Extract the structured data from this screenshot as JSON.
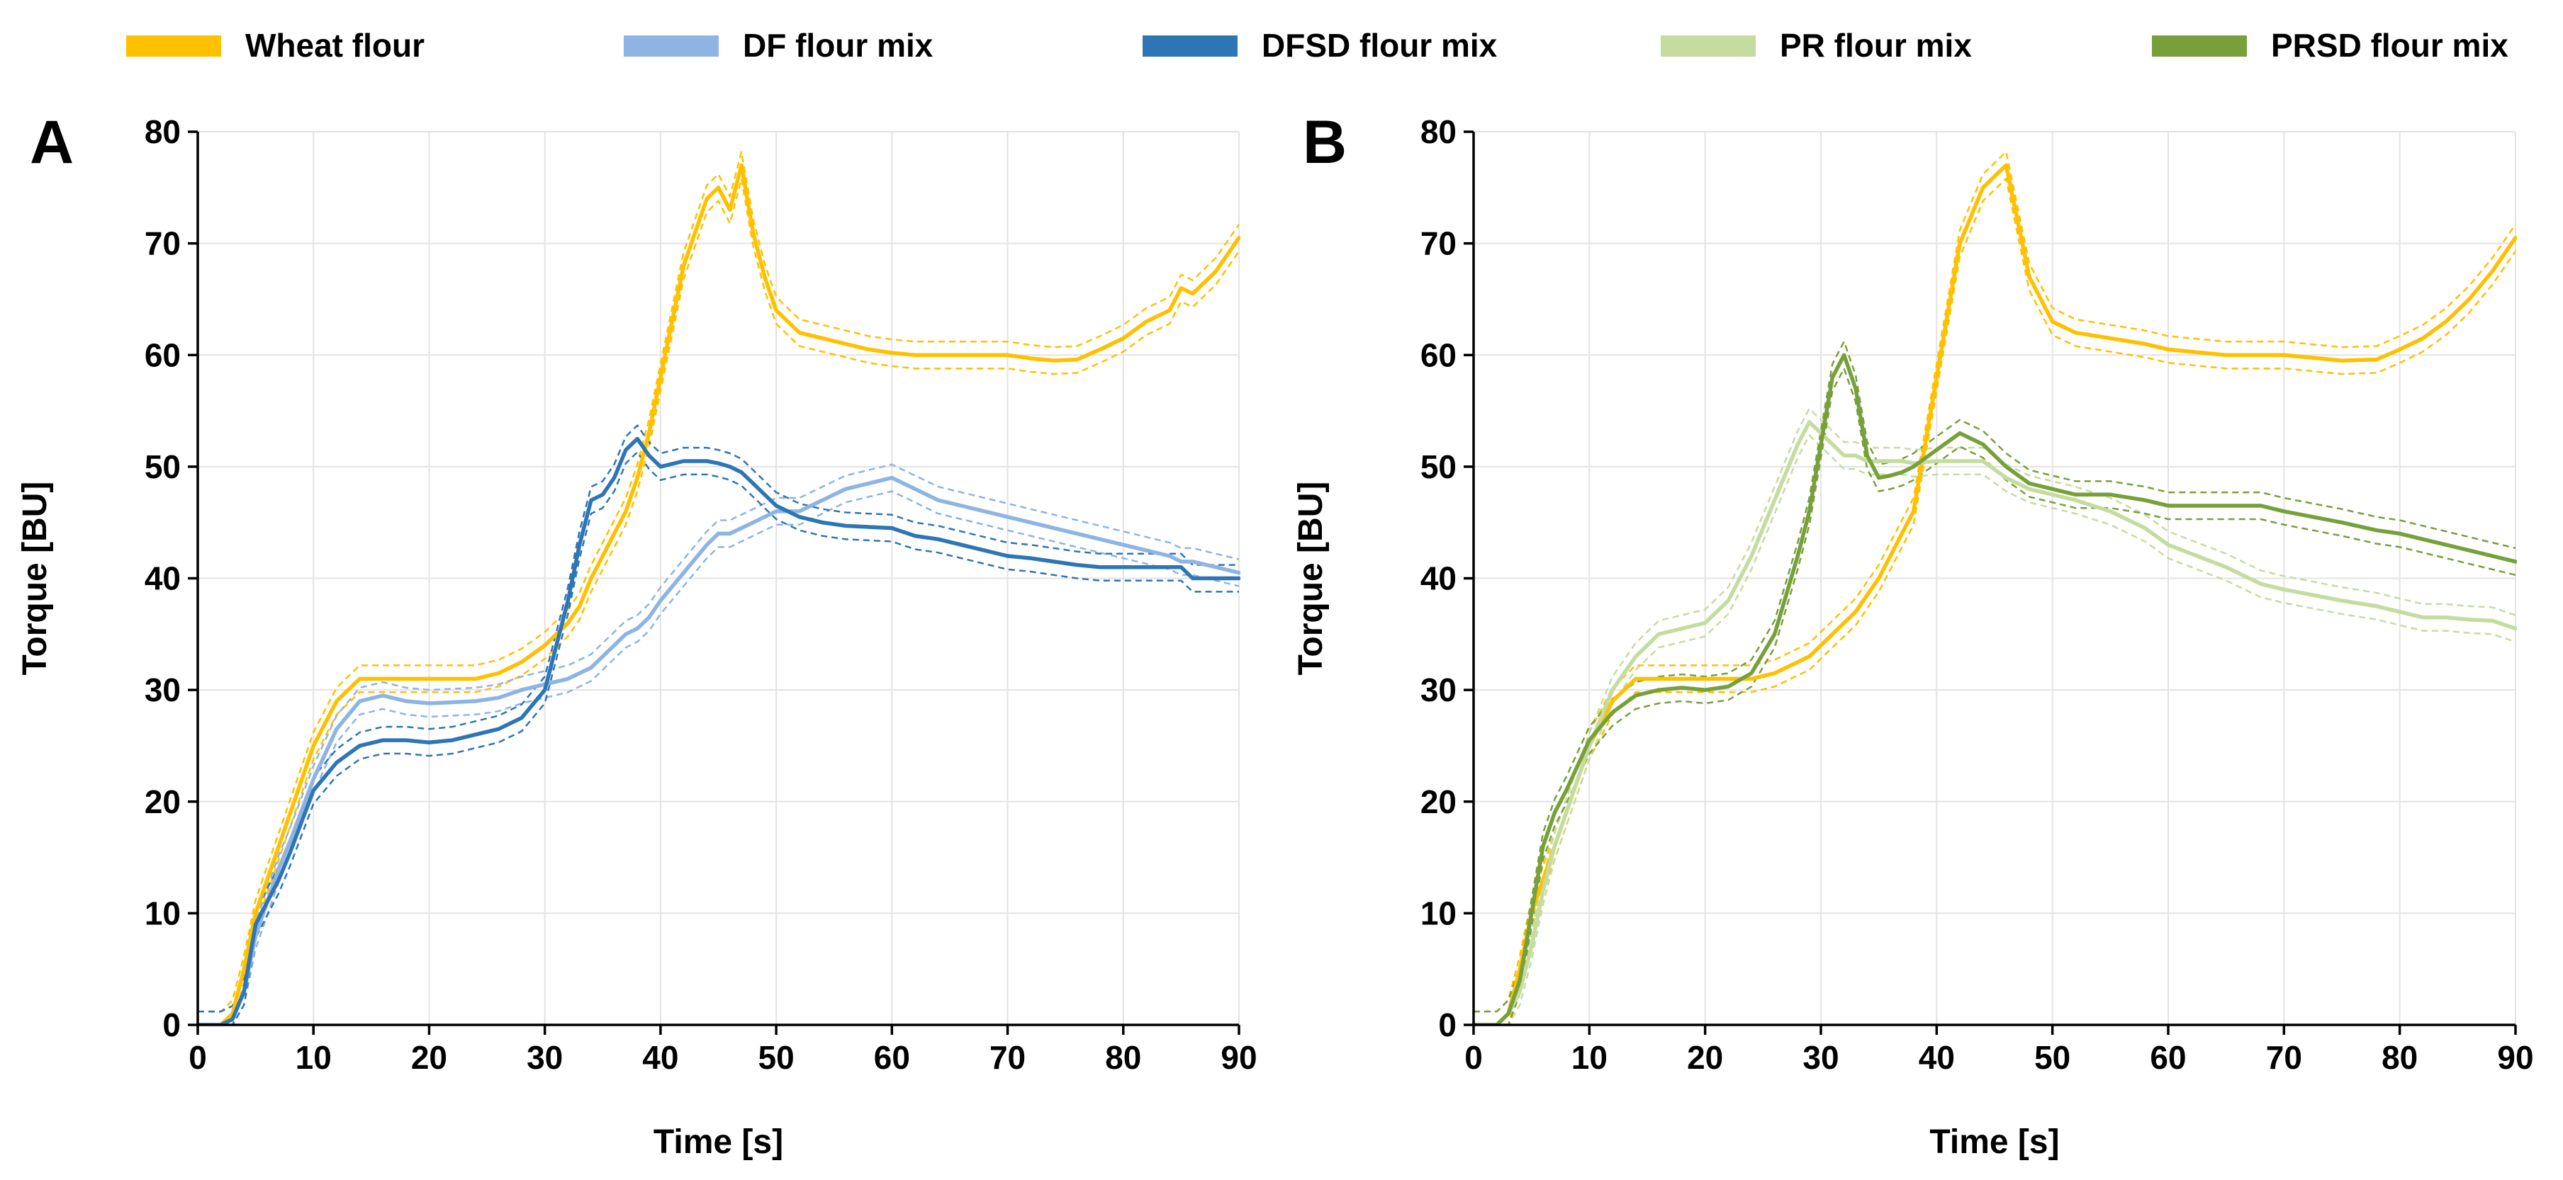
{
  "legend": {
    "position": "top",
    "items": [
      {
        "label": "Wheat flour",
        "color": "#FFC000"
      },
      {
        "label": "DF flour mix",
        "color": "#8EB4E3"
      },
      {
        "label": "DFSD flour mix",
        "color": "#2E75B6"
      },
      {
        "label": "PR flour mix",
        "color": "#C5DCA0"
      },
      {
        "label": "PRSD flour mix",
        "color": "#77A03A"
      }
    ]
  },
  "chart_data": [
    {
      "panel_label": "A",
      "type": "line",
      "xlabel": "Time [s]",
      "ylabel": "Torque [BU]",
      "xlim": [
        0,
        90
      ],
      "ylim": [
        0,
        80
      ],
      "xticks": [
        "0",
        "10",
        "20",
        "30",
        "40",
        "50",
        "60",
        "70",
        "80",
        "90"
      ],
      "yticks": [
        "0",
        "10",
        "20",
        "30",
        "40",
        "50",
        "60",
        "70",
        "80"
      ],
      "grid": true,
      "x": [
        0,
        2,
        3,
        4,
        5,
        6,
        7,
        8,
        10,
        12,
        14,
        16,
        18,
        20,
        22,
        24,
        26,
        28,
        30,
        32,
        33,
        34,
        35,
        36,
        37,
        38,
        39,
        40,
        42,
        44,
        45,
        46,
        47,
        48,
        49,
        50,
        52,
        54,
        56,
        58,
        60,
        62,
        64,
        66,
        68,
        70,
        72,
        74,
        76,
        78,
        80,
        82,
        84,
        85,
        86,
        88,
        90
      ],
      "series": [
        {
          "name": "Wheat flour",
          "color": "#FFC000",
          "values": [
            0,
            0,
            1,
            5,
            10,
            13,
            16,
            19,
            25,
            29,
            31,
            31,
            31,
            31,
            31,
            31,
            31.5,
            32.5,
            34,
            36,
            37.5,
            40,
            42,
            44,
            46,
            49,
            53,
            58,
            68,
            74,
            75,
            73,
            77,
            71,
            67,
            64,
            62,
            61.5,
            61,
            60.5,
            60.2,
            60,
            60,
            60,
            60,
            60,
            59.7,
            59.5,
            59.6,
            60.5,
            61.5,
            63,
            64,
            66,
            65.5,
            67.5,
            70.5
          ]
        },
        {
          "name": "DF flour mix",
          "color": "#8EB4E3",
          "values": [
            0,
            0,
            0.5,
            3,
            8,
            11,
            14,
            16.5,
            22,
            26.5,
            29,
            29.5,
            29,
            28.8,
            28.9,
            29,
            29.3,
            30,
            30.5,
            31,
            31.5,
            32,
            33,
            34,
            35,
            35.5,
            36.5,
            38,
            40.5,
            43,
            44,
            44,
            44.5,
            45,
            45.5,
            46,
            46,
            47,
            48,
            48.5,
            49,
            48,
            47,
            46.5,
            46,
            45.5,
            45,
            44.5,
            44,
            43.5,
            43,
            42.5,
            42,
            41.5,
            41.5,
            41,
            40.5
          ]
        },
        {
          "name": "DFSD flour mix",
          "color": "#2E75B6",
          "values": [
            0,
            0,
            0.5,
            3,
            9,
            11,
            13,
            15.5,
            21,
            23.5,
            25,
            25.5,
            25.5,
            25.3,
            25.5,
            26,
            26.5,
            27.5,
            30,
            38,
            43,
            47,
            47.5,
            49,
            51.5,
            52.5,
            51,
            50,
            50.5,
            50.5,
            50.3,
            50,
            49.5,
            48.5,
            47.5,
            46.5,
            45.5,
            45,
            44.7,
            44.6,
            44.5,
            43.8,
            43.5,
            43,
            42.5,
            42,
            41.8,
            41.5,
            41.2,
            41,
            41,
            41,
            41,
            41,
            40,
            40,
            40
          ]
        }
      ]
    },
    {
      "panel_label": "B",
      "type": "line",
      "xlabel": "Time [s]",
      "ylabel": "Torque [BU]",
      "xlim": [
        0,
        90
      ],
      "ylim": [
        0,
        80
      ],
      "xticks": [
        "0",
        "10",
        "20",
        "30",
        "40",
        "50",
        "60",
        "70",
        "80",
        "90"
      ],
      "yticks": [
        "0",
        "10",
        "20",
        "30",
        "40",
        "50",
        "60",
        "70",
        "80"
      ],
      "grid": true,
      "x": [
        0,
        2,
        3,
        4,
        5,
        6,
        7,
        8,
        10,
        12,
        14,
        16,
        18,
        20,
        22,
        24,
        26,
        28,
        29,
        30,
        31,
        32,
        33,
        34,
        35,
        36,
        37,
        38,
        40,
        42,
        44,
        46,
        48,
        50,
        52,
        55,
        58,
        60,
        65,
        68,
        70,
        75,
        78,
        80,
        82,
        84,
        86,
        88,
        90
      ],
      "series": [
        {
          "name": "Wheat flour",
          "color": "#FFC000",
          "values": [
            0,
            0,
            1,
            5,
            10,
            13,
            16,
            19,
            25,
            29,
            31,
            31,
            31,
            31,
            31,
            31,
            31.5,
            32.5,
            33,
            34,
            35,
            36,
            37,
            38.5,
            40,
            42,
            44,
            46,
            58,
            70,
            75,
            77,
            67,
            63,
            62,
            61.5,
            61,
            60.5,
            60,
            60,
            60,
            59.5,
            59.6,
            60.5,
            61.5,
            63,
            65,
            67.5,
            70.5
          ]
        },
        {
          "name": "PR flour mix",
          "color": "#C5DCA0",
          "values": [
            0,
            0,
            1,
            3,
            7,
            12,
            16,
            19,
            25,
            30,
            33,
            35,
            35.5,
            36,
            38,
            42,
            47,
            52,
            54,
            53,
            52,
            51,
            51,
            50.5,
            50.5,
            50.5,
            50.5,
            50.3,
            50.5,
            50.5,
            50.5,
            49,
            48,
            47.5,
            47,
            46,
            44.5,
            43,
            41,
            39.5,
            39,
            38,
            37.5,
            37,
            36.5,
            36.5,
            36.3,
            36.2,
            35.5
          ]
        },
        {
          "name": "PRSD flour mix",
          "color": "#77A03A",
          "values": [
            0,
            0,
            1,
            4,
            10,
            16,
            19,
            21,
            25.5,
            28,
            29.5,
            30,
            30.2,
            30,
            30.3,
            31.5,
            35,
            42,
            46,
            52,
            58,
            60,
            57,
            51,
            49,
            49.2,
            49.5,
            50,
            51.5,
            53,
            52,
            50,
            48.5,
            48,
            47.5,
            47.5,
            47,
            46.5,
            46.5,
            46.5,
            46,
            45,
            44.3,
            44,
            43.5,
            43,
            42.5,
            42,
            41.5
          ]
        }
      ]
    }
  ]
}
